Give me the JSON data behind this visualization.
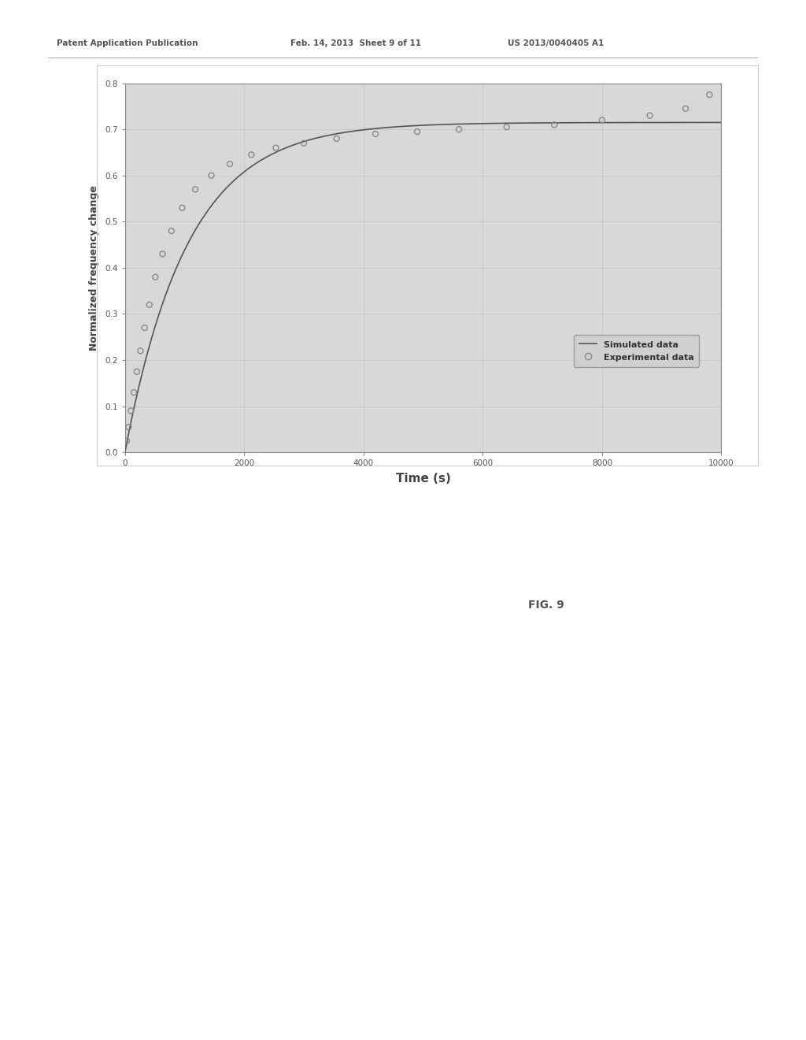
{
  "header_left": "Patent Application Publication",
  "header_mid": "Feb. 14, 2013  Sheet 9 of 11",
  "header_right": "US 2013/0040405 A1",
  "fig_label": "FIG. 9",
  "xlabel": "Time (s)",
  "ylabel": "Normalized frequency change",
  "xlim": [
    0,
    10000
  ],
  "ylim": [
    0,
    0.8
  ],
  "xticks": [
    0,
    2000,
    4000,
    6000,
    8000,
    10000
  ],
  "yticks": [
    0,
    0.1,
    0.2,
    0.3,
    0.4,
    0.5,
    0.6,
    0.7,
    0.8
  ],
  "sim_color": "#555555",
  "exp_color": "#888888",
  "chart_bg_color": "#d8d8d8",
  "page_color": "#ffffff",
  "legend_label_sim": "Simulated data",
  "legend_label_exp": "Experimental data",
  "k_on": 0.00095,
  "plateau": 0.715,
  "exp_points_x": [
    30,
    60,
    100,
    150,
    200,
    260,
    330,
    410,
    510,
    630,
    780,
    960,
    1180,
    1450,
    1760,
    2120,
    2530,
    3000,
    3550,
    4200,
    4900,
    5600,
    6400,
    7200,
    8000,
    8800,
    9400,
    9800
  ],
  "exp_points_y": [
    0.025,
    0.055,
    0.09,
    0.13,
    0.175,
    0.22,
    0.27,
    0.32,
    0.38,
    0.43,
    0.48,
    0.53,
    0.57,
    0.6,
    0.625,
    0.645,
    0.66,
    0.67,
    0.68,
    0.69,
    0.695,
    0.7,
    0.705,
    0.71,
    0.72,
    0.73,
    0.745,
    0.775
  ]
}
